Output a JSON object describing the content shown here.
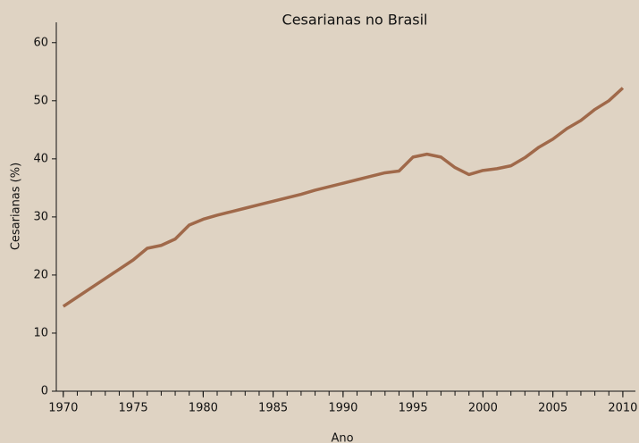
{
  "chart_data": {
    "type": "line",
    "title": "Cesarianas no Brasil",
    "x_label": "Ano",
    "y_label": "Cesarianas (%)",
    "x": [
      1970,
      1971,
      1972,
      1973,
      1974,
      1975,
      1976,
      1977,
      1978,
      1979,
      1980,
      1981,
      1982,
      1983,
      1984,
      1985,
      1986,
      1987,
      1988,
      1989,
      1990,
      1991,
      1992,
      1993,
      1994,
      1995,
      1996,
      1997,
      1998,
      1999,
      2000,
      2001,
      2002,
      2003,
      2004,
      2005,
      2006,
      2007,
      2008,
      2009,
      2010
    ],
    "series": [
      {
        "name": "Cesarianas",
        "color": "#a0694a",
        "values": [
          14.6,
          16.2,
          17.8,
          19.4,
          21.0,
          22.6,
          24.6,
          25.1,
          26.2,
          28.6,
          29.6,
          30.3,
          30.9,
          31.5,
          32.1,
          32.7,
          33.3,
          33.9,
          34.6,
          35.2,
          35.8,
          36.4,
          37.0,
          37.6,
          37.9,
          40.3,
          40.8,
          40.3,
          38.5,
          37.3,
          38.0,
          38.3,
          38.8,
          40.2,
          42.0,
          43.4,
          45.2,
          46.6,
          48.5,
          50.0,
          52.2
        ]
      }
    ],
    "xlim": [
      1969.5,
      2010.9
    ],
    "xticks": [
      1970,
      1975,
      1980,
      1985,
      1990,
      1995,
      2000,
      2005,
      2010
    ],
    "ylim": [
      0,
      63.5
    ],
    "yticks": [
      0,
      10,
      20,
      30,
      40,
      50,
      60
    ]
  }
}
